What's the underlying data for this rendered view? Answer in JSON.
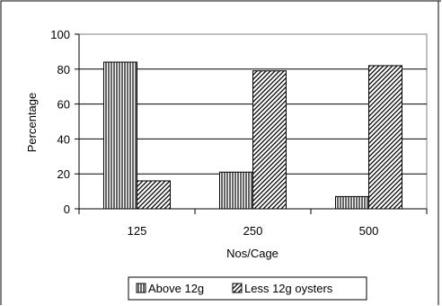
{
  "chart_data": {
    "type": "bar",
    "title": "",
    "xlabel": "Nos/Cage",
    "ylabel": "Percentage",
    "ylim": [
      0,
      100
    ],
    "yticks": [
      0,
      20,
      40,
      60,
      80,
      100
    ],
    "grid": true,
    "legend_position": "bottom",
    "categories": [
      "125",
      "250",
      "500"
    ],
    "series": [
      {
        "name": "Above 12g",
        "pattern": "vertical-lines",
        "values": [
          84,
          21,
          7
        ]
      },
      {
        "name": "Less 12g oysters",
        "pattern": "diagonal-lines",
        "values": [
          16,
          79,
          82
        ]
      }
    ]
  }
}
